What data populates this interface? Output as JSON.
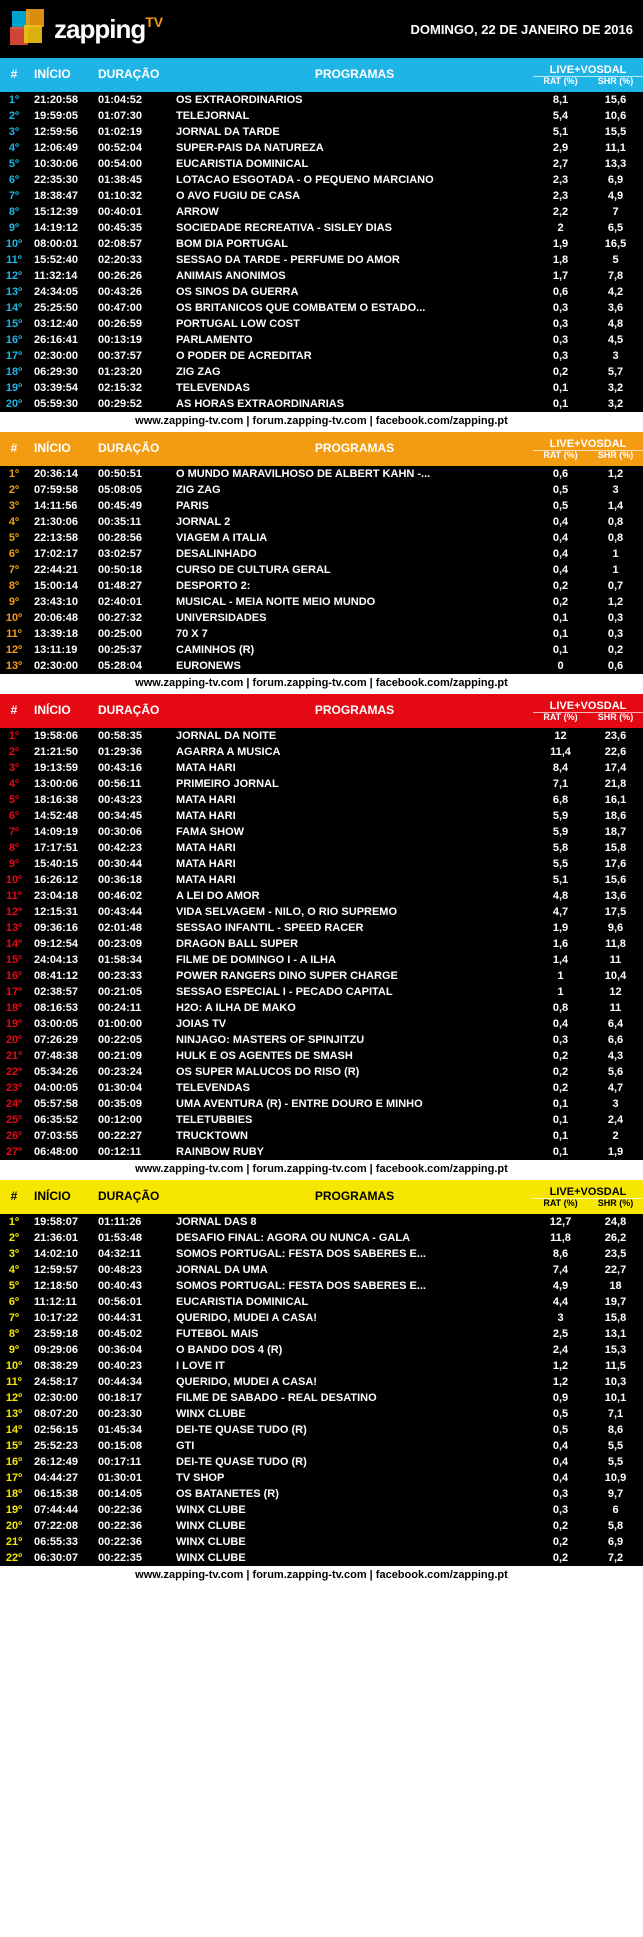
{
  "header": {
    "logo_text": "zapping",
    "logo_tv": "TV",
    "date": "DOMINGO, 22 DE JANEIRO DE 2016"
  },
  "footer_text": "www.zapping-tv.com | forum.zapping-tv.com | facebook.com/zapping.pt",
  "columns": {
    "rank": "#",
    "inicio": "INÍCIO",
    "duracao": "DURAÇÃO",
    "programas": "PROGRAMAS",
    "live_vosdal": "LIVE+VOSDAL",
    "rat": "RAT (%)",
    "shr": "SHR (%)"
  },
  "channels": [
    {
      "header_bg": "#1fb4e6",
      "rank_color": "#1fb4e6",
      "rows": [
        {
          "rank": "1º",
          "inicio": "21:20:58",
          "dur": "01:04:52",
          "prog": "OS EXTRAORDINARIOS",
          "rat": "8,1",
          "shr": "15,6"
        },
        {
          "rank": "2º",
          "inicio": "19:59:05",
          "dur": "01:07:30",
          "prog": "TELEJORNAL",
          "rat": "5,4",
          "shr": "10,6"
        },
        {
          "rank": "3º",
          "inicio": "12:59:56",
          "dur": "01:02:19",
          "prog": "JORNAL DA TARDE",
          "rat": "5,1",
          "shr": "15,5"
        },
        {
          "rank": "4º",
          "inicio": "12:06:49",
          "dur": "00:52:04",
          "prog": "SUPER-PAIS DA NATUREZA",
          "rat": "2,9",
          "shr": "11,1"
        },
        {
          "rank": "5º",
          "inicio": "10:30:06",
          "dur": "00:54:00",
          "prog": "EUCARISTIA DOMINICAL",
          "rat": "2,7",
          "shr": "13,3"
        },
        {
          "rank": "6º",
          "inicio": "22:35:30",
          "dur": "01:38:45",
          "prog": "LOTACAO ESGOTADA - O PEQUENO MARCIANO",
          "rat": "2,3",
          "shr": "6,9"
        },
        {
          "rank": "7º",
          "inicio": "18:38:47",
          "dur": "01:10:32",
          "prog": "O AVO FUGIU DE CASA",
          "rat": "2,3",
          "shr": "4,9"
        },
        {
          "rank": "8º",
          "inicio": "15:12:39",
          "dur": "00:40:01",
          "prog": "ARROW",
          "rat": "2,2",
          "shr": "7"
        },
        {
          "rank": "9º",
          "inicio": "14:19:12",
          "dur": "00:45:35",
          "prog": "SOCIEDADE RECREATIVA - SISLEY DIAS",
          "rat": "2",
          "shr": "6,5"
        },
        {
          "rank": "10º",
          "inicio": "08:00:01",
          "dur": "02:08:57",
          "prog": "BOM DIA PORTUGAL",
          "rat": "1,9",
          "shr": "16,5"
        },
        {
          "rank": "11º",
          "inicio": "15:52:40",
          "dur": "02:20:33",
          "prog": "SESSAO DA TARDE - PERFUME DO AMOR",
          "rat": "1,8",
          "shr": "5"
        },
        {
          "rank": "12º",
          "inicio": "11:32:14",
          "dur": "00:26:26",
          "prog": "ANIMAIS ANONIMOS",
          "rat": "1,7",
          "shr": "7,8"
        },
        {
          "rank": "13º",
          "inicio": "24:34:05",
          "dur": "00:43:26",
          "prog": "OS SINOS DA GUERRA",
          "rat": "0,6",
          "shr": "4,2"
        },
        {
          "rank": "14º",
          "inicio": "25:25:50",
          "dur": "00:47:00",
          "prog": "OS BRITANICOS QUE COMBATEM O ESTADO...",
          "rat": "0,3",
          "shr": "3,6"
        },
        {
          "rank": "15º",
          "inicio": "03:12:40",
          "dur": "00:26:59",
          "prog": "PORTUGAL LOW COST",
          "rat": "0,3",
          "shr": "4,8"
        },
        {
          "rank": "16º",
          "inicio": "26:16:41",
          "dur": "00:13:19",
          "prog": "PARLAMENTO",
          "rat": "0,3",
          "shr": "4,5"
        },
        {
          "rank": "17º",
          "inicio": "02:30:00",
          "dur": "00:37:57",
          "prog": "O PODER DE ACREDITAR",
          "rat": "0,3",
          "shr": "3"
        },
        {
          "rank": "18º",
          "inicio": "06:29:30",
          "dur": "01:23:20",
          "prog": "ZIG ZAG",
          "rat": "0,2",
          "shr": "5,7"
        },
        {
          "rank": "19º",
          "inicio": "03:39:54",
          "dur": "02:15:32",
          "prog": "TELEVENDAS",
          "rat": "0,1",
          "shr": "3,2"
        },
        {
          "rank": "20º",
          "inicio": "05:59:30",
          "dur": "00:29:52",
          "prog": "AS HORAS EXTRAORDINARIAS",
          "rat": "0,1",
          "shr": "3,2"
        }
      ]
    },
    {
      "header_bg": "#f39c12",
      "rank_color": "#f39c12",
      "rows": [
        {
          "rank": "1º",
          "inicio": "20:36:14",
          "dur": "00:50:51",
          "prog": "O MUNDO MARAVILHOSO DE ALBERT KAHN -...",
          "rat": "0,6",
          "shr": "1,2"
        },
        {
          "rank": "2º",
          "inicio": "07:59:58",
          "dur": "05:08:05",
          "prog": "ZIG ZAG",
          "rat": "0,5",
          "shr": "3"
        },
        {
          "rank": "3º",
          "inicio": "14:11:56",
          "dur": "00:45:49",
          "prog": "PARIS",
          "rat": "0,5",
          "shr": "1,4"
        },
        {
          "rank": "4º",
          "inicio": "21:30:06",
          "dur": "00:35:11",
          "prog": "JORNAL 2",
          "rat": "0,4",
          "shr": "0,8"
        },
        {
          "rank": "5º",
          "inicio": "22:13:58",
          "dur": "00:28:56",
          "prog": "VIAGEM A ITALIA",
          "rat": "0,4",
          "shr": "0,8"
        },
        {
          "rank": "6º",
          "inicio": "17:02:17",
          "dur": "03:02:57",
          "prog": "DESALINHADO",
          "rat": "0,4",
          "shr": "1"
        },
        {
          "rank": "7º",
          "inicio": "22:44:21",
          "dur": "00:50:18",
          "prog": "CURSO DE CULTURA GERAL",
          "rat": "0,4",
          "shr": "1"
        },
        {
          "rank": "8º",
          "inicio": "15:00:14",
          "dur": "01:48:27",
          "prog": "DESPORTO 2:",
          "rat": "0,2",
          "shr": "0,7"
        },
        {
          "rank": "9º",
          "inicio": "23:43:10",
          "dur": "02:40:01",
          "prog": "MUSICAL - MEIA NOITE MEIO MUNDO",
          "rat": "0,2",
          "shr": "1,2"
        },
        {
          "rank": "10º",
          "inicio": "20:06:48",
          "dur": "00:27:32",
          "prog": "UNIVERSIDADES",
          "rat": "0,1",
          "shr": "0,3"
        },
        {
          "rank": "11º",
          "inicio": "13:39:18",
          "dur": "00:25:00",
          "prog": "70 X 7",
          "rat": "0,1",
          "shr": "0,3"
        },
        {
          "rank": "12º",
          "inicio": "13:11:19",
          "dur": "00:25:37",
          "prog": "CAMINHOS (R)",
          "rat": "0,1",
          "shr": "0,2"
        },
        {
          "rank": "13º",
          "inicio": "02:30:00",
          "dur": "05:28:04",
          "prog": "EURONEWS",
          "rat": "0",
          "shr": "0,6"
        }
      ]
    },
    {
      "header_bg": "#e50914",
      "rank_color": "#e50914",
      "rows": [
        {
          "rank": "1º",
          "inicio": "19:58:06",
          "dur": "00:58:35",
          "prog": "JORNAL DA NOITE",
          "rat": "12",
          "shr": "23,6"
        },
        {
          "rank": "2º",
          "inicio": "21:21:50",
          "dur": "01:29:36",
          "prog": "AGARRA A MUSICA",
          "rat": "11,4",
          "shr": "22,6"
        },
        {
          "rank": "3º",
          "inicio": "19:13:59",
          "dur": "00:43:16",
          "prog": "MATA HARI",
          "rat": "8,4",
          "shr": "17,4"
        },
        {
          "rank": "4º",
          "inicio": "13:00:06",
          "dur": "00:56:11",
          "prog": "PRIMEIRO JORNAL",
          "rat": "7,1",
          "shr": "21,8"
        },
        {
          "rank": "5º",
          "inicio": "18:16:38",
          "dur": "00:43:23",
          "prog": "MATA HARI",
          "rat": "6,8",
          "shr": "16,1"
        },
        {
          "rank": "6º",
          "inicio": "14:52:48",
          "dur": "00:34:45",
          "prog": "MATA HARI",
          "rat": "5,9",
          "shr": "18,6"
        },
        {
          "rank": "7º",
          "inicio": "14:09:19",
          "dur": "00:30:06",
          "prog": "FAMA SHOW",
          "rat": "5,9",
          "shr": "18,7"
        },
        {
          "rank": "8º",
          "inicio": "17:17:51",
          "dur": "00:42:23",
          "prog": "MATA HARI",
          "rat": "5,8",
          "shr": "15,8"
        },
        {
          "rank": "9º",
          "inicio": "15:40:15",
          "dur": "00:30:44",
          "prog": "MATA HARI",
          "rat": "5,5",
          "shr": "17,6"
        },
        {
          "rank": "10º",
          "inicio": "16:26:12",
          "dur": "00:36:18",
          "prog": "MATA HARI",
          "rat": "5,1",
          "shr": "15,6"
        },
        {
          "rank": "11º",
          "inicio": "23:04:18",
          "dur": "00:46:02",
          "prog": "A LEI DO AMOR",
          "rat": "4,8",
          "shr": "13,6"
        },
        {
          "rank": "12º",
          "inicio": "12:15:31",
          "dur": "00:43:44",
          "prog": "VIDA SELVAGEM - NILO, O RIO SUPREMO",
          "rat": "4,7",
          "shr": "17,5"
        },
        {
          "rank": "13º",
          "inicio": "09:36:16",
          "dur": "02:01:48",
          "prog": "SESSAO INFANTIL - SPEED RACER",
          "rat": "1,9",
          "shr": "9,6"
        },
        {
          "rank": "14º",
          "inicio": "09:12:54",
          "dur": "00:23:09",
          "prog": "DRAGON BALL SUPER",
          "rat": "1,6",
          "shr": "11,8"
        },
        {
          "rank": "15º",
          "inicio": "24:04:13",
          "dur": "01:58:34",
          "prog": "FILME DE DOMINGO I - A ILHA",
          "rat": "1,4",
          "shr": "11"
        },
        {
          "rank": "16º",
          "inicio": "08:41:12",
          "dur": "00:23:33",
          "prog": "POWER RANGERS DINO SUPER CHARGE",
          "rat": "1",
          "shr": "10,4"
        },
        {
          "rank": "17º",
          "inicio": "02:38:57",
          "dur": "00:21:05",
          "prog": "SESSAO ESPECIAL I - PECADO CAPITAL",
          "rat": "1",
          "shr": "12"
        },
        {
          "rank": "18º",
          "inicio": "08:16:53",
          "dur": "00:24:11",
          "prog": "H2O: A ILHA DE MAKO",
          "rat": "0,8",
          "shr": "11"
        },
        {
          "rank": "19º",
          "inicio": "03:00:05",
          "dur": "01:00:00",
          "prog": "JOIAS TV",
          "rat": "0,4",
          "shr": "6,4"
        },
        {
          "rank": "20º",
          "inicio": "07:26:29",
          "dur": "00:22:05",
          "prog": "NINJAGO: MASTERS OF SPINJITZU",
          "rat": "0,3",
          "shr": "6,6"
        },
        {
          "rank": "21º",
          "inicio": "07:48:38",
          "dur": "00:21:09",
          "prog": "HULK E OS AGENTES DE SMASH",
          "rat": "0,2",
          "shr": "4,3"
        },
        {
          "rank": "22º",
          "inicio": "05:34:26",
          "dur": "00:23:24",
          "prog": "OS SUPER MALUCOS DO RISO (R)",
          "rat": "0,2",
          "shr": "5,6"
        },
        {
          "rank": "23º",
          "inicio": "04:00:05",
          "dur": "01:30:04",
          "prog": "TELEVENDAS",
          "rat": "0,2",
          "shr": "4,7"
        },
        {
          "rank": "24º",
          "inicio": "05:57:58",
          "dur": "00:35:09",
          "prog": "UMA AVENTURA (R) - ENTRE DOURO E MINHO",
          "rat": "0,1",
          "shr": "3"
        },
        {
          "rank": "25º",
          "inicio": "06:35:52",
          "dur": "00:12:00",
          "prog": "TELETUBBIES",
          "rat": "0,1",
          "shr": "2,4"
        },
        {
          "rank": "26º",
          "inicio": "07:03:55",
          "dur": "00:22:27",
          "prog": "TRUCKTOWN",
          "rat": "0,1",
          "shr": "2"
        },
        {
          "rank": "27º",
          "inicio": "06:48:00",
          "dur": "00:12:11",
          "prog": "RAINBOW RUBY",
          "rat": "0,1",
          "shr": "1,9"
        }
      ]
    },
    {
      "header_bg": "#f7e600",
      "header_text": "#000000",
      "rank_color": "#f7e600",
      "rows": [
        {
          "rank": "1º",
          "inicio": "19:58:07",
          "dur": "01:11:26",
          "prog": "JORNAL DAS 8",
          "rat": "12,7",
          "shr": "24,8"
        },
        {
          "rank": "2º",
          "inicio": "21:36:01",
          "dur": "01:53:48",
          "prog": "DESAFIO FINAL: AGORA OU NUNCA - GALA",
          "rat": "11,8",
          "shr": "26,2"
        },
        {
          "rank": "3º",
          "inicio": "14:02:10",
          "dur": "04:32:11",
          "prog": "SOMOS PORTUGAL: FESTA DOS SABERES E...",
          "rat": "8,6",
          "shr": "23,5"
        },
        {
          "rank": "4º",
          "inicio": "12:59:57",
          "dur": "00:48:23",
          "prog": "JORNAL DA UMA",
          "rat": "7,4",
          "shr": "22,7"
        },
        {
          "rank": "5º",
          "inicio": "12:18:50",
          "dur": "00:40:43",
          "prog": "SOMOS PORTUGAL: FESTA DOS SABERES E...",
          "rat": "4,9",
          "shr": "18"
        },
        {
          "rank": "6º",
          "inicio": "11:12:11",
          "dur": "00:56:01",
          "prog": "EUCARISTIA DOMINICAL",
          "rat": "4,4",
          "shr": "19,7"
        },
        {
          "rank": "7º",
          "inicio": "10:17:22",
          "dur": "00:44:31",
          "prog": "QUERIDO, MUDEI A CASA!",
          "rat": "3",
          "shr": "15,8"
        },
        {
          "rank": "8º",
          "inicio": "23:59:18",
          "dur": "00:45:02",
          "prog": "FUTEBOL MAIS",
          "rat": "2,5",
          "shr": "13,1"
        },
        {
          "rank": "9º",
          "inicio": "09:29:06",
          "dur": "00:36:04",
          "prog": "O BANDO DOS 4 (R)",
          "rat": "2,4",
          "shr": "15,3"
        },
        {
          "rank": "10º",
          "inicio": "08:38:29",
          "dur": "00:40:23",
          "prog": "I LOVE IT",
          "rat": "1,2",
          "shr": "11,5"
        },
        {
          "rank": "11º",
          "inicio": "24:58:17",
          "dur": "00:44:34",
          "prog": "QUERIDO, MUDEI A CASA!",
          "rat": "1,2",
          "shr": "10,3"
        },
        {
          "rank": "12º",
          "inicio": "02:30:00",
          "dur": "00:18:17",
          "prog": "FILME DE SABADO - REAL DESATINO",
          "rat": "0,9",
          "shr": "10,1"
        },
        {
          "rank": "13º",
          "inicio": "08:07:20",
          "dur": "00:23:30",
          "prog": "WINX CLUBE",
          "rat": "0,5",
          "shr": "7,1"
        },
        {
          "rank": "14º",
          "inicio": "02:56:15",
          "dur": "01:45:34",
          "prog": "DEI-TE QUASE TUDO (R)",
          "rat": "0,5",
          "shr": "8,6"
        },
        {
          "rank": "15º",
          "inicio": "25:52:23",
          "dur": "00:15:08",
          "prog": "GTI",
          "rat": "0,4",
          "shr": "5,5"
        },
        {
          "rank": "16º",
          "inicio": "26:12:49",
          "dur": "00:17:11",
          "prog": "DEI-TE QUASE TUDO (R)",
          "rat": "0,4",
          "shr": "5,5"
        },
        {
          "rank": "17º",
          "inicio": "04:44:27",
          "dur": "01:30:01",
          "prog": "TV SHOP",
          "rat": "0,4",
          "shr": "10,9"
        },
        {
          "rank": "18º",
          "inicio": "06:15:38",
          "dur": "00:14:05",
          "prog": "OS BATANETES (R)",
          "rat": "0,3",
          "shr": "9,7"
        },
        {
          "rank": "19º",
          "inicio": "07:44:44",
          "dur": "00:22:36",
          "prog": "WINX CLUBE",
          "rat": "0,3",
          "shr": "6"
        },
        {
          "rank": "20º",
          "inicio": "07:22:08",
          "dur": "00:22:36",
          "prog": "WINX CLUBE",
          "rat": "0,2",
          "shr": "5,8"
        },
        {
          "rank": "21º",
          "inicio": "06:55:33",
          "dur": "00:22:36",
          "prog": "WINX CLUBE",
          "rat": "0,2",
          "shr": "6,9"
        },
        {
          "rank": "22º",
          "inicio": "06:30:07",
          "dur": "00:22:35",
          "prog": "WINX CLUBE",
          "rat": "0,2",
          "shr": "7,2"
        }
      ]
    }
  ]
}
